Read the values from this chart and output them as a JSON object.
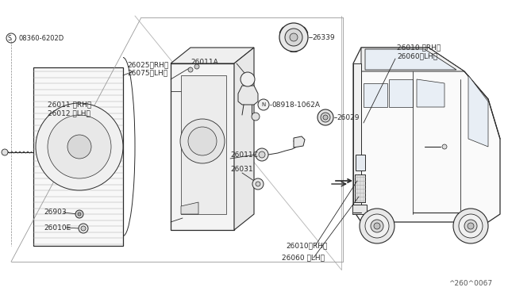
{
  "bg_color": "#ffffff",
  "lc": "#2a2a2a",
  "tc": "#2a2a2a",
  "fig_w": 6.4,
  "fig_h": 3.72,
  "dpi": 100,
  "labels": {
    "s_bolt": "S 08360-6202D",
    "l26011rh": "26011 〈RH〉",
    "l26012lh": "26012 〈LH〉",
    "l26025rh": "26025〈RH〉",
    "l26075lh": "26075〈LH〉",
    "l26011a": "26011A",
    "l26339": "26339",
    "ln08918": "N 08918-1062A",
    "l26029": "26029",
    "l26011c": "26011C",
    "l26031": "26031",
    "l26903": "26903",
    "l26010e": "26010E",
    "l26010rh_top": "26010 〈RH〉",
    "l26060lh_top": "26060〈LH〉",
    "l26010rh_bot": "26010〈RH〉",
    "l26060lh_bot": "26060 〈LH〉",
    "drawing_no": "^260^0067"
  }
}
